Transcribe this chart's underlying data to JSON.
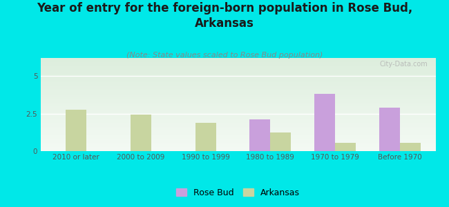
{
  "title": "Year of entry for the foreign-born population in Rose Bud,\nArkansas",
  "subtitle": "(Note: State values scaled to Rose Bud population)",
  "categories": [
    "2010 or later",
    "2000 to 2009",
    "1990 to 1999",
    "1980 to 1989",
    "1970 to 1979",
    "Before 1970"
  ],
  "rose_bud": [
    0,
    0,
    0,
    2.1,
    3.8,
    2.9
  ],
  "arkansas": [
    2.75,
    2.45,
    1.9,
    1.25,
    0.55,
    0.55
  ],
  "rose_bud_color": "#c9a0dc",
  "arkansas_color": "#c8d5a0",
  "background_color": "#00e8e8",
  "plot_bg_top": "#ddeedd",
  "plot_bg_bottom": "#f4faf4",
  "ylim": [
    0,
    6.2
  ],
  "yticks": [
    0,
    2.5,
    5
  ],
  "bar_width": 0.32,
  "title_fontsize": 12,
  "subtitle_fontsize": 8,
  "tick_fontsize": 7.5,
  "legend_fontsize": 9
}
